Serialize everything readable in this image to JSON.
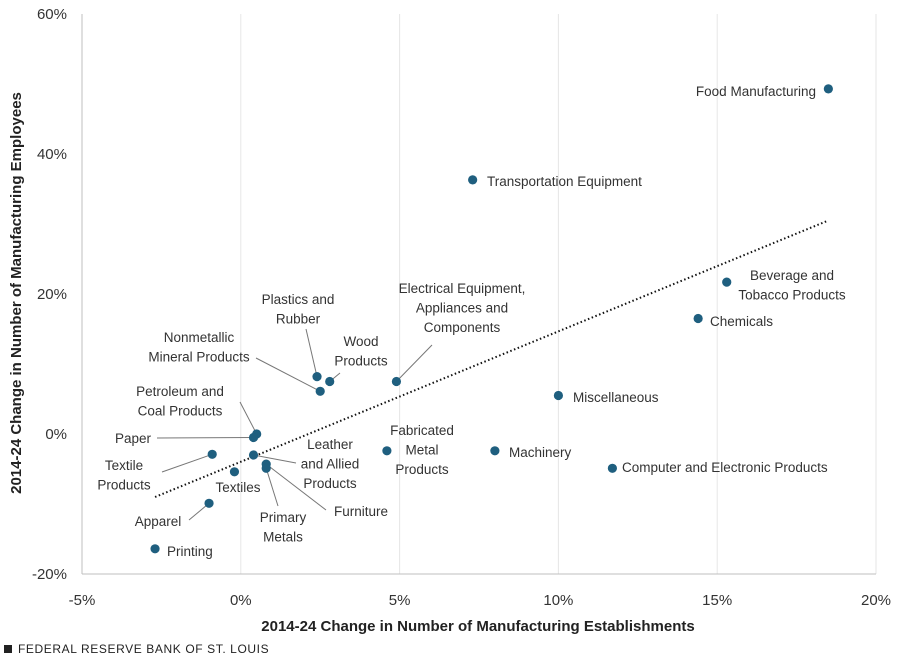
{
  "chart_data": {
    "type": "scatter",
    "xlabel": "2014-24 Change in Number of Manufacturing Establishments",
    "ylabel": "2014-24 Change in Number of Manufacturing Employees",
    "xlim": [
      -5,
      20
    ],
    "ylim": [
      -20,
      60
    ],
    "x_ticks": [
      -5,
      0,
      5,
      10,
      15,
      20
    ],
    "x_tick_labels": [
      "-5%",
      "0%",
      "5%",
      "10%",
      "15%",
      "20%"
    ],
    "y_ticks": [
      -20,
      0,
      20,
      40,
      60
    ],
    "y_tick_labels": [
      "-20%",
      "0%",
      "20%",
      "40%",
      "60%"
    ],
    "grid": "vertical",
    "marker_color": "#1f5f7f",
    "trendline": {
      "style": "dotted",
      "x": [
        -2.7,
        18.5
      ],
      "y": [
        -9,
        30.5
      ]
    },
    "points": [
      {
        "name": "Food Manufacturing",
        "label": [
          "Food Manufacturing"
        ],
        "x": 18.5,
        "y": 49.3
      },
      {
        "name": "Transportation Equipment",
        "label": [
          "Transportation Equipment"
        ],
        "x": 7.3,
        "y": 36.3
      },
      {
        "name": "Beverage and Tobacco Products",
        "label": [
          "Beverage and",
          "Tobacco Products"
        ],
        "x": 15.3,
        "y": 21.7
      },
      {
        "name": "Chemicals",
        "label": [
          "Chemicals"
        ],
        "x": 14.4,
        "y": 16.5
      },
      {
        "name": "Electrical Equipment, Appliances and Components",
        "label": [
          "Electrical Equipment,",
          "Appliances and",
          "Components"
        ],
        "x": 4.9,
        "y": 7.5
      },
      {
        "name": "Miscellaneous",
        "label": [
          "Miscellaneous"
        ],
        "x": 10.0,
        "y": 5.5
      },
      {
        "name": "Plastics and Rubber",
        "label": [
          "Plastics and",
          "Rubber"
        ],
        "x": 2.4,
        "y": 8.2
      },
      {
        "name": "Wood Products",
        "label": [
          "Wood",
          "Products"
        ],
        "x": 2.8,
        "y": 7.5
      },
      {
        "name": "Nonmetallic Mineral Products",
        "label": [
          "Nonmetallic",
          "Mineral Products"
        ],
        "x": 2.5,
        "y": 6.1
      },
      {
        "name": "Petroleum and Coal Products",
        "label": [
          "Petroleum and",
          "Coal Products"
        ],
        "x": 0.5,
        "y": 0.0
      },
      {
        "name": "Paper",
        "label": [
          "Paper"
        ],
        "x": 0.4,
        "y": -0.5
      },
      {
        "name": "Textile Products",
        "label": [
          "Textile",
          "Products"
        ],
        "x": -0.9,
        "y": -2.9
      },
      {
        "name": "Leather and Allied Products",
        "label": [
          "Leather",
          "and Allied",
          "Products"
        ],
        "x": 0.4,
        "y": -3.0
      },
      {
        "name": "Textiles",
        "label": [
          "Textiles"
        ],
        "x": -0.2,
        "y": -5.4
      },
      {
        "name": "Furniture",
        "label": [
          "Furniture"
        ],
        "x": 0.8,
        "y": -4.3
      },
      {
        "name": "Primary Metals",
        "label": [
          "Primary",
          "Metals"
        ],
        "x": 0.8,
        "y": -4.9
      },
      {
        "name": "Apparel",
        "label": [
          "Apparel"
        ],
        "x": -1.0,
        "y": -9.9
      },
      {
        "name": "Printing",
        "label": [
          "Printing"
        ],
        "x": -2.7,
        "y": -16.4
      },
      {
        "name": "Fabricated Metal Products",
        "label": [
          "Fabricated",
          "Metal",
          "Products"
        ],
        "x": 4.6,
        "y": -2.4
      },
      {
        "name": "Machinery",
        "label": [
          "Machinery"
        ],
        "x": 8.0,
        "y": -2.4
      },
      {
        "name": "Computer and Electronic Products",
        "label": [
          "Computer and Electronic Products"
        ],
        "x": 11.7,
        "y": -4.9
      }
    ]
  },
  "footer": {
    "source": "FEDERAL RESERVE BANK OF ST. LOUIS"
  }
}
